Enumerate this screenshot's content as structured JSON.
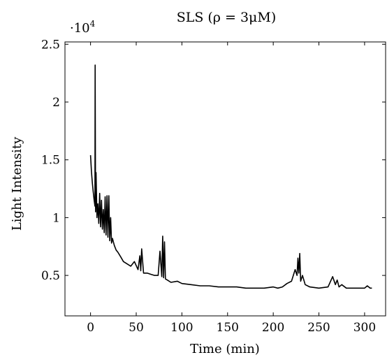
{
  "chart_data": {
    "type": "line",
    "title": "SLS (ρ = 3μM)",
    "xlabel": "Time (min)",
    "ylabel": "Light Intensity",
    "y_multiplier": "·10",
    "y_multiplier_exponent": "4",
    "xlim": [
      -28,
      323
    ],
    "ylim": [
      0.15,
      2.52
    ],
    "grid": false,
    "legend": "none",
    "line_color": "#000000",
    "xticks": [
      {
        "value": 0,
        "label": "0"
      },
      {
        "value": 50,
        "label": "50"
      },
      {
        "value": 100,
        "label": "100"
      },
      {
        "value": 150,
        "label": "150"
      },
      {
        "value": 200,
        "label": "200"
      },
      {
        "value": 250,
        "label": "250"
      },
      {
        "value": 300,
        "label": "300"
      }
    ],
    "yticks": [
      {
        "value": 0.5,
        "label": "0.5"
      },
      {
        "value": 1.0,
        "label": "1"
      },
      {
        "value": 1.5,
        "label": "1.5"
      },
      {
        "value": 2.0,
        "label": "2"
      },
      {
        "value": 2.5,
        "label": "2.5"
      }
    ],
    "series": [
      {
        "x": [
          0,
          1,
          2,
          3,
          4,
          4.8,
          5,
          5.5,
          6,
          7,
          8,
          9,
          10,
          11,
          12,
          13,
          14,
          15,
          16,
          17,
          18,
          19,
          20,
          21,
          22,
          23,
          24,
          26,
          28,
          30,
          33,
          36,
          40,
          44,
          48,
          52,
          54,
          55,
          56,
          58,
          62,
          66,
          70,
          74,
          76,
          78,
          79,
          80,
          81,
          82,
          84,
          88,
          95,
          100,
          110,
          120,
          130,
          140,
          150,
          160,
          170,
          180,
          190,
          200,
          205,
          210,
          215,
          220,
          224,
          226,
          227,
          228,
          229,
          230,
          232,
          235,
          240,
          250,
          260,
          265,
          268,
          270,
          272,
          275,
          280,
          290,
          300,
          303,
          306,
          308
        ],
        "y": [
          1.54,
          1.4,
          1.3,
          1.22,
          1.15,
          1.1,
          2.32,
          1.05,
          1.39,
          1.0,
          1.12,
          0.95,
          1.21,
          0.92,
          1.15,
          0.9,
          1.07,
          0.87,
          1.18,
          0.85,
          1.19,
          0.83,
          1.19,
          0.8,
          1.0,
          0.78,
          0.82,
          0.76,
          0.72,
          0.7,
          0.66,
          0.62,
          0.6,
          0.58,
          0.62,
          0.55,
          0.67,
          0.54,
          0.73,
          0.52,
          0.52,
          0.51,
          0.5,
          0.5,
          0.71,
          0.49,
          0.84,
          0.48,
          0.79,
          0.47,
          0.46,
          0.44,
          0.45,
          0.43,
          0.42,
          0.41,
          0.41,
          0.4,
          0.4,
          0.4,
          0.39,
          0.39,
          0.39,
          0.4,
          0.39,
          0.4,
          0.43,
          0.45,
          0.55,
          0.5,
          0.65,
          0.52,
          0.69,
          0.45,
          0.5,
          0.42,
          0.4,
          0.39,
          0.4,
          0.49,
          0.42,
          0.46,
          0.4,
          0.42,
          0.39,
          0.39,
          0.39,
          0.41,
          0.39,
          0.39
        ]
      }
    ]
  }
}
